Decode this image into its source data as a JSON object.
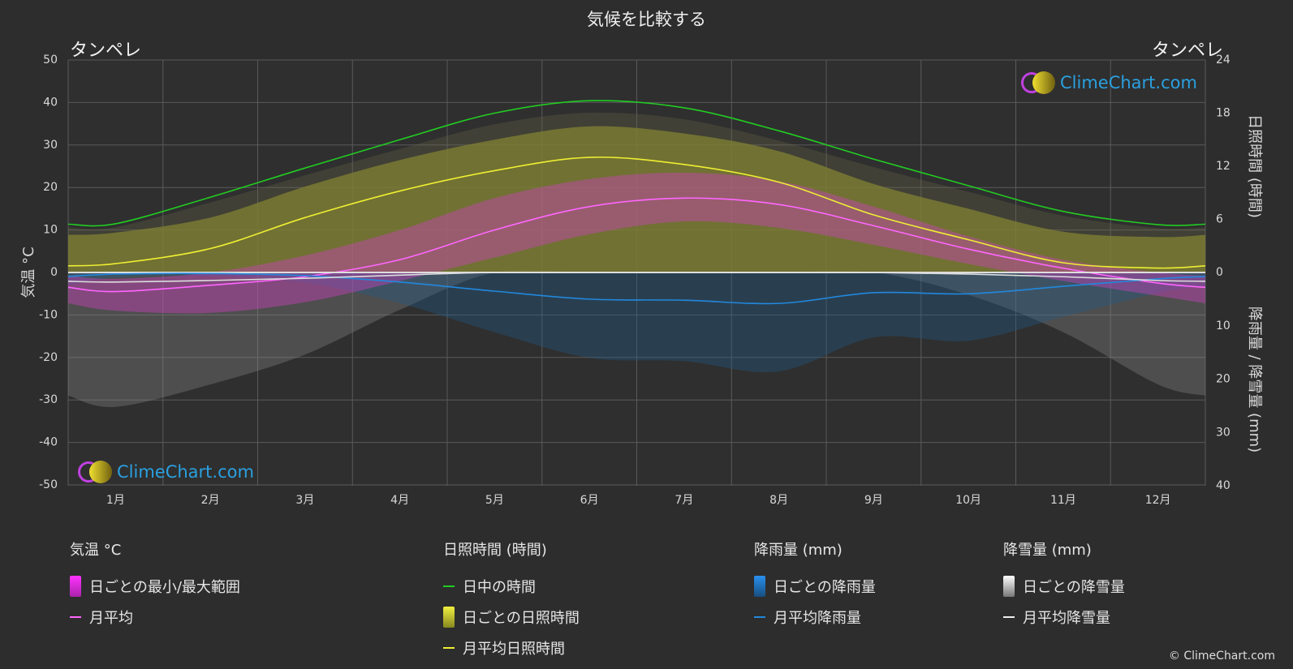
{
  "header": {
    "title": "気候を比較する",
    "location_left": "タンペレ",
    "location_right": "タンペレ"
  },
  "logo_text": "ClimeChart.com",
  "copyright": "© ClimeChart.com",
  "chart_data": {
    "type": "area",
    "months": [
      "1月",
      "2月",
      "3月",
      "4月",
      "5月",
      "6月",
      "7月",
      "8月",
      "9月",
      "10月",
      "11月",
      "12月"
    ],
    "axes": {
      "left": {
        "label": "気温 °C",
        "ticks": [
          50,
          40,
          30,
          20,
          10,
          0,
          -10,
          -20,
          -30,
          -40,
          -50
        ],
        "range": [
          -50,
          50
        ]
      },
      "right_top": {
        "label": "日照時間 (時間)",
        "ticks": [
          24,
          18,
          12,
          6,
          0
        ],
        "range": [
          0,
          24
        ]
      },
      "right_bottom": {
        "label": "降雨量 / 降雪量 (mm)",
        "ticks": [
          0,
          10,
          20,
          30,
          40
        ],
        "range": [
          0,
          40
        ]
      }
    },
    "series": {
      "daylight_hours": [
        5.5,
        8.5,
        11.8,
        15.0,
        18.0,
        19.4,
        18.6,
        16.0,
        12.8,
        9.8,
        6.9,
        5.4
      ],
      "sunshine_hours": [
        1.0,
        2.7,
        6.2,
        9.2,
        11.5,
        13.0,
        12.2,
        10.2,
        6.5,
        3.7,
        1.1,
        0.5
      ],
      "temp_mean_c": [
        -4.5,
        -3.0,
        -1.0,
        3.0,
        10.0,
        15.5,
        17.5,
        16.0,
        11.0,
        5.5,
        1.0,
        -2.5
      ],
      "temp_daily_max_c": [
        -1.5,
        0.0,
        4.0,
        10.0,
        17.5,
        22.0,
        23.5,
        21.5,
        15.5,
        8.5,
        3.0,
        0.0
      ],
      "temp_daily_min_c": [
        -9.0,
        -9.5,
        -7.0,
        -2.0,
        3.5,
        9.0,
        12.0,
        10.5,
        6.5,
        2.0,
        -2.0,
        -5.5
      ],
      "rain_mm": [
        0.3,
        0.2,
        0.6,
        1.8,
        3.5,
        5.0,
        5.2,
        5.8,
        3.8,
        4.0,
        2.6,
        1.2
      ],
      "snow_mm": [
        1.8,
        1.5,
        1.1,
        0.5,
        0.0,
        0.0,
        0.0,
        0.0,
        0.0,
        0.3,
        0.8,
        1.5
      ]
    },
    "colors": {
      "daylight": "#22cc22",
      "sunshine": "#eeee33",
      "temp_mean": "#ff66ff",
      "rain": "#2288dd",
      "snow": "#dddddd",
      "temp_range": "#dd22dd"
    }
  },
  "legend": {
    "temperature": {
      "header": "気温 °C",
      "range_label": "日ごとの最小/最大範囲",
      "mean_label": "月平均"
    },
    "sunshine": {
      "header": "日照時間 (時間)",
      "daylight_label": "日中の時間",
      "daily_label": "日ごとの日照時間",
      "mean_label": "月平均日照時間"
    },
    "rain": {
      "header": "降雨量 (mm)",
      "daily_label": "日ごとの降雨量",
      "mean_label": "月平均降雨量"
    },
    "snow": {
      "header": "降雪量 (mm)",
      "daily_label": "日ごとの降雪量",
      "mean_label": "月平均降雪量"
    }
  }
}
